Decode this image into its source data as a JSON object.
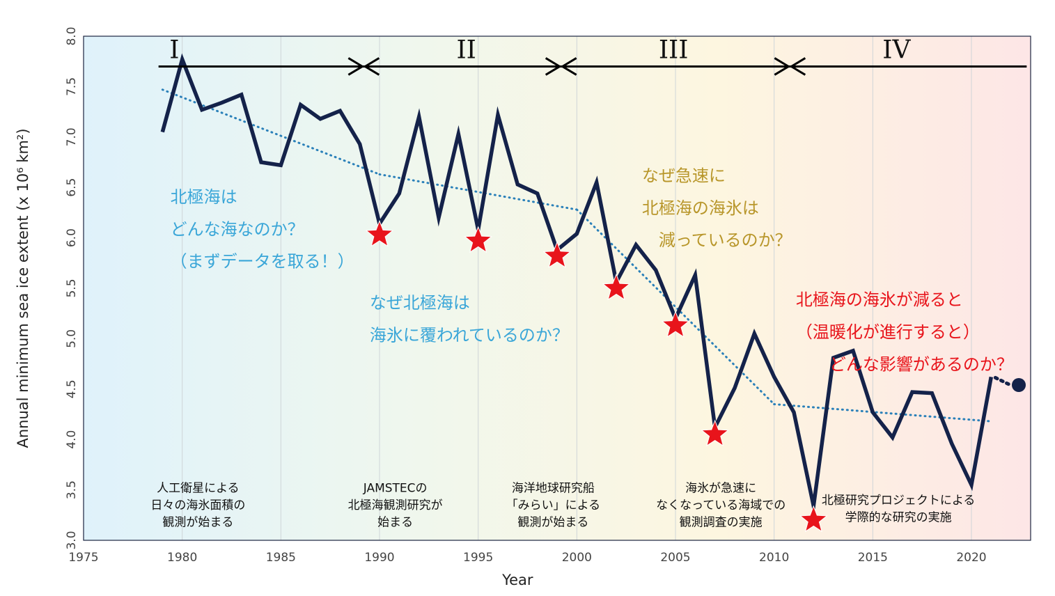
{
  "chart_data": {
    "type": "line",
    "xlabel": "Year",
    "ylabel": "Annual minimum sea ice extent (x 10⁶ km²)",
    "xlim": [
      1975,
      2023
    ],
    "ylim": [
      3.0,
      8.0
    ],
    "xticks": [
      "1975",
      "1980",
      "1985",
      "1990",
      "1995",
      "2000",
      "2005",
      "2010",
      "2015",
      "2020"
    ],
    "yticks": [
      "3.0",
      "3.5",
      "4.0",
      "4.5",
      "5.0",
      "5.5",
      "6.0",
      "6.5",
      "7.0",
      "7.5",
      "8.0"
    ],
    "grid": "vertical lines",
    "series": [
      {
        "color": "#14224a",
        "x": [
          1979,
          1980,
          1981,
          1982,
          1983,
          1984,
          1985,
          1986,
          1987,
          1988,
          1989,
          1990,
          1991,
          1992,
          1993,
          1994,
          1995,
          1996,
          1997,
          1998,
          1999,
          2000,
          2001,
          2002,
          2003,
          2004,
          2005,
          2006,
          2007,
          2008,
          2009,
          2010,
          2011,
          2012,
          2013,
          2014,
          2015,
          2016,
          2017,
          2018,
          2019,
          2020,
          2021
        ],
        "y": [
          7.05,
          7.77,
          7.27,
          7.34,
          7.42,
          6.75,
          6.72,
          7.32,
          7.18,
          7.26,
          6.93,
          6.14,
          6.44,
          7.2,
          6.2,
          7.03,
          6.08,
          7.22,
          6.53,
          6.44,
          5.88,
          6.04,
          6.55,
          5.56,
          5.93,
          5.68,
          5.2,
          5.63,
          4.12,
          4.51,
          5.05,
          4.62,
          4.27,
          3.34,
          4.81,
          4.88,
          4.27,
          4.02,
          4.47,
          4.46,
          3.96,
          3.55,
          4.62
        ]
      }
    ],
    "forecast_point": {
      "x": 2022.4,
      "y": 4.54,
      "color": "#14224a"
    },
    "trend_segments": [
      {
        "x": [
          1979,
          1990
        ],
        "y": [
          7.47,
          6.63
        ]
      },
      {
        "x": [
          1990,
          2000
        ],
        "y": [
          6.63,
          6.28
        ]
      },
      {
        "x": [
          2000,
          2010
        ],
        "y": [
          6.28,
          4.35
        ]
      },
      {
        "x": [
          2010,
          2021
        ],
        "y": [
          4.35,
          4.18
        ]
      }
    ],
    "trend_color": "#2a80b9",
    "star_years": [
      {
        "x": 1990,
        "y": 6.03
      },
      {
        "x": 1995,
        "y": 5.97
      },
      {
        "x": 1999,
        "y": 5.82
      },
      {
        "x": 2002,
        "y": 5.5
      },
      {
        "x": 2005,
        "y": 5.13
      },
      {
        "x": 2007,
        "y": 4.05
      },
      {
        "x": 2012,
        "y": 3.2
      }
    ],
    "star_color": "#e8141b",
    "background_gradient": [
      "#dff2fb",
      "#eff7ee",
      "#fdf6e0",
      "#fde6e6"
    ],
    "periods": [
      {
        "label": "I",
        "x": [
          1978.8,
          1989.2
        ],
        "label_x": 1979.6
      },
      {
        "label": "II",
        "x": [
          1989.2,
          1999.2
        ],
        "label_x": 1994.4
      },
      {
        "label": "III",
        "x": [
          1999.2,
          2010.8
        ],
        "label_x": 2004.9
      },
      {
        "label": "IV",
        "x": [
          2010.8,
          2022.8
        ],
        "label_x": 2016.2
      }
    ],
    "period_arrow_y": 7.7,
    "questions": [
      {
        "color": "#3aa6d8",
        "x": 1979.4,
        "y": [
          6.35,
          6.03,
          5.71
        ],
        "lines": [
          "北極海は",
          "どんな海なのか？",
          "（まずデータを取る！）"
        ]
      },
      {
        "color": "#3aa6d8",
        "x": 1989.5,
        "y": [
          5.3,
          4.98
        ],
        "lines": [
          "なぜ北極海は",
          "海氷に覆われているのか？"
        ]
      },
      {
        "color": "#b8962a",
        "x": 2003.3,
        "y": [
          6.56,
          6.24,
          5.92
        ],
        "lines": [
          "なぜ急速に",
          "北極海の海氷は",
          "　減っているのか？"
        ]
      },
      {
        "color": "#e8141b",
        "x": 2011.1,
        "y": [
          5.33,
          5.01,
          4.69
        ],
        "lines": [
          "北極海の海氷が減ると",
          "（温暖化が進行すると）",
          "　　どんな影響があるのか？"
        ]
      }
    ],
    "notes": [
      {
        "cx": 1980.8,
        "y": [
          3.48,
          3.31,
          3.14
        ],
        "lines": [
          "人工衛星による",
          "日々の海氷面積の",
          "観測が始まる"
        ]
      },
      {
        "cx": 1990.8,
        "y": [
          3.48,
          3.31,
          3.14
        ],
        "lines": [
          "JAMSTECの",
          "北極海観測研究が",
          "始まる"
        ]
      },
      {
        "cx": 1998.8,
        "y": [
          3.48,
          3.31,
          3.14
        ],
        "lines": [
          "海洋地球研究船",
          "「みらい」による",
          "観測が始まる"
        ]
      },
      {
        "cx": 2007.3,
        "y": [
          3.48,
          3.31,
          3.14
        ],
        "lines": [
          "海氷が急速に",
          "なくなっている海域での",
          "観測調査の実施"
        ]
      },
      {
        "cx": 2016.3,
        "y": [
          3.36,
          3.19
        ],
        "lines": [
          "北極研究プロジェクトによる",
          "学際的な研究の実施"
        ]
      }
    ]
  }
}
